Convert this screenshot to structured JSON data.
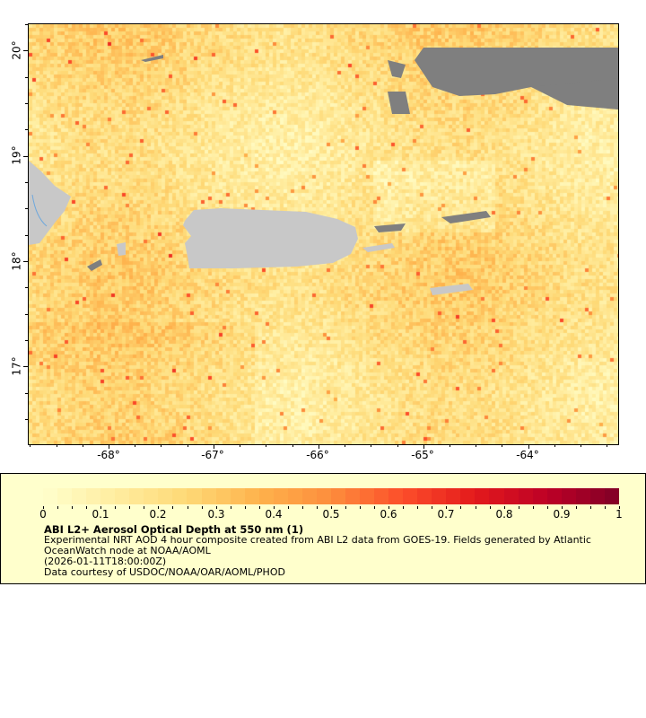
{
  "map": {
    "extent": {
      "lon": [
        -68.77,
        -63.15
      ],
      "lat": [
        16.27,
        20.26
      ]
    },
    "lon_ticks": [
      "-68°",
      "-67°",
      "-66°",
      "-65°",
      "-64°"
    ],
    "lat_ticks": [
      "20°",
      "19°",
      "18°",
      "17°"
    ],
    "colors": {
      "land": "#c8c8c8",
      "no_data": "#7f7f7f",
      "coast_line": "#6fa8dc"
    }
  },
  "legend": {
    "colormap": "YlOrRd",
    "range": [
      0,
      1
    ],
    "tick_labels": [
      "0",
      "0.1",
      "0.2",
      "0.3",
      "0.4",
      "0.5",
      "0.6",
      "0.7",
      "0.8",
      "0.9",
      "1"
    ],
    "title": "ABI L2+ Aerosol Optical Depth at 550 nm (1)",
    "description_line1": "Experimental NRT AOD 4 hour composite created from ABI L2 data from GOES-19. Fields generated by Atlantic",
    "description_line2": "OceanWatch node at NOAA/AOML",
    "time": "(2026-01-11T18:00:00Z)",
    "credit": "Data courtesy of USDOC/NOAA/OAR/AOML/PHOD",
    "background": "#ffffcc"
  }
}
